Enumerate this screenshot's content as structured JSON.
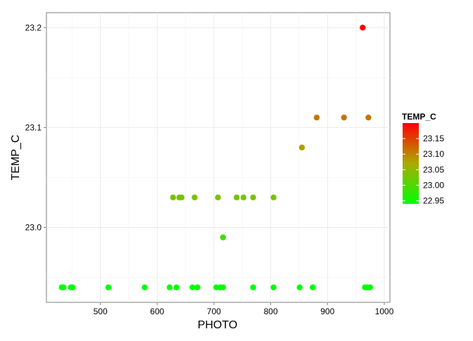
{
  "chart_data": {
    "type": "scatter",
    "xlabel": "PHOTO",
    "ylabel": "TEMP_C",
    "xlim": [
      405,
      1010
    ],
    "ylim": [
      22.925,
      23.215
    ],
    "x_ticks": [
      500,
      600,
      700,
      800,
      900,
      1000
    ],
    "x_tick_labels": [
      "500",
      "600",
      "700",
      "800",
      "900",
      "1000"
    ],
    "y_ticks": [
      23.0,
      23.1,
      23.2
    ],
    "y_tick_labels": [
      "23.0",
      "23.1",
      "23.2"
    ],
    "grid": true,
    "legend": {
      "title": "TEMP_C",
      "placement": "right",
      "type": "colorbar",
      "range": [
        22.94,
        23.2
      ],
      "ticks": [
        22.95,
        23.0,
        23.05,
        23.1,
        23.15
      ],
      "tick_labels": [
        "22.95",
        "23.00",
        "23.05",
        "23.10",
        "23.15"
      ],
      "low_color": "#00FF00",
      "high_color": "#FF0000"
    },
    "points": [
      {
        "x": 432,
        "y": 22.94
      },
      {
        "x": 435,
        "y": 22.94
      },
      {
        "x": 448,
        "y": 22.94
      },
      {
        "x": 451,
        "y": 22.94
      },
      {
        "x": 514,
        "y": 22.94
      },
      {
        "x": 578,
        "y": 22.94
      },
      {
        "x": 622,
        "y": 22.94
      },
      {
        "x": 634,
        "y": 22.94
      },
      {
        "x": 662,
        "y": 22.94
      },
      {
        "x": 671,
        "y": 22.94
      },
      {
        "x": 704,
        "y": 22.94
      },
      {
        "x": 711,
        "y": 22.94
      },
      {
        "x": 716,
        "y": 22.94
      },
      {
        "x": 769,
        "y": 22.94
      },
      {
        "x": 805,
        "y": 22.94
      },
      {
        "x": 851,
        "y": 22.94
      },
      {
        "x": 874,
        "y": 22.94
      },
      {
        "x": 966,
        "y": 22.94
      },
      {
        "x": 970,
        "y": 22.94
      },
      {
        "x": 975,
        "y": 22.94
      },
      {
        "x": 716,
        "y": 22.99
      },
      {
        "x": 628,
        "y": 23.03
      },
      {
        "x": 639,
        "y": 23.03
      },
      {
        "x": 643,
        "y": 23.03
      },
      {
        "x": 666,
        "y": 23.03
      },
      {
        "x": 707,
        "y": 23.03
      },
      {
        "x": 740,
        "y": 23.03
      },
      {
        "x": 752,
        "y": 23.03
      },
      {
        "x": 769,
        "y": 23.03
      },
      {
        "x": 805,
        "y": 23.03
      },
      {
        "x": 855,
        "y": 23.08
      },
      {
        "x": 881,
        "y": 23.11
      },
      {
        "x": 929,
        "y": 23.11
      },
      {
        "x": 972,
        "y": 23.11
      },
      {
        "x": 962,
        "y": 23.2
      }
    ]
  }
}
